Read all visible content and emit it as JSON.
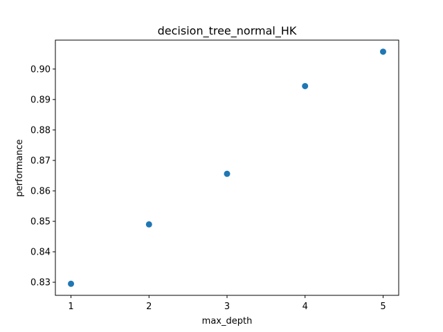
{
  "chart_data": {
    "type": "scatter",
    "title": "decision_tree_normal_HK",
    "xlabel": "max_depth",
    "ylabel": "performance",
    "x": [
      1,
      2,
      3,
      4,
      5
    ],
    "y": [
      0.8295,
      0.849,
      0.8656,
      0.8944,
      0.9057
    ],
    "xlim": [
      0.8,
      5.2
    ],
    "ylim": [
      0.8257,
      0.9095
    ],
    "xticks": [
      1,
      2,
      3,
      4,
      5
    ],
    "xtick_labels": [
      "1",
      "2",
      "3",
      "4",
      "5"
    ],
    "yticks": [
      0.83,
      0.84,
      0.85,
      0.86,
      0.87,
      0.88,
      0.89,
      0.9
    ],
    "ytick_labels": [
      "0.83",
      "0.84",
      "0.85",
      "0.86",
      "0.87",
      "0.88",
      "0.89",
      "0.90"
    ],
    "grid": false,
    "marker_color": "#1f77b4"
  }
}
